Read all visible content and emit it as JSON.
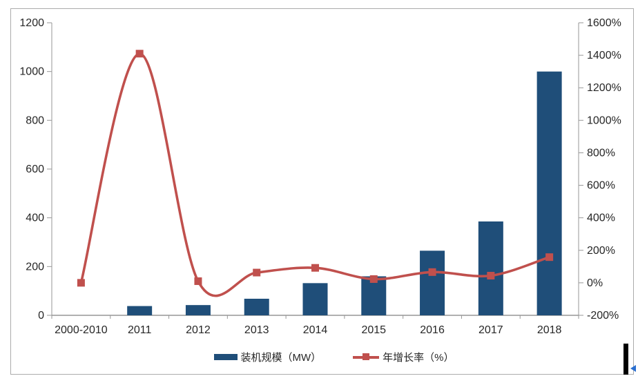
{
  "chart_data": {
    "type": "combo",
    "title": "",
    "categories": [
      "2000-2010",
      "2011",
      "2012",
      "2013",
      "2014",
      "2015",
      "2016",
      "2017",
      "2018"
    ],
    "series": [
      {
        "name": "装机规模（MW）",
        "type": "bar",
        "axis": "left",
        "color": "#1F4E79",
        "values": [
          0,
          38,
          42,
          68,
          132,
          160,
          265,
          385,
          1000
        ]
      },
      {
        "name": "年增长率（%）",
        "type": "line",
        "axis": "right",
        "color": "#C0504D",
        "values": [
          0,
          1410,
          10,
          63,
          92,
          23,
          66,
          44,
          158
        ]
      }
    ],
    "left_axis": {
      "min": 0,
      "max": 1200,
      "step": 200,
      "labels": [
        "0",
        "200",
        "400",
        "600",
        "800",
        "1000",
        "1200"
      ]
    },
    "right_axis": {
      "min": -200,
      "max": 1600,
      "step": 200,
      "labels": [
        "-200%",
        "0%",
        "200%",
        "400%",
        "600%",
        "800%",
        "1000%",
        "1200%",
        "1400%",
        "1600%"
      ]
    },
    "xlabel": "",
    "ylabel": "",
    "grid": false,
    "legend_position": "bottom",
    "smooth_line": true,
    "marker": "square"
  },
  "style": {
    "bar_color": "#1F4E79",
    "line_color": "#C0504D",
    "axis_color": "#969696",
    "text_color": "#262626",
    "frame_border_color": "#ABABAB",
    "background": "#FFFFFF",
    "artifact_black": "#000000",
    "artifact_cursor_blue": "#2B6FD0"
  }
}
